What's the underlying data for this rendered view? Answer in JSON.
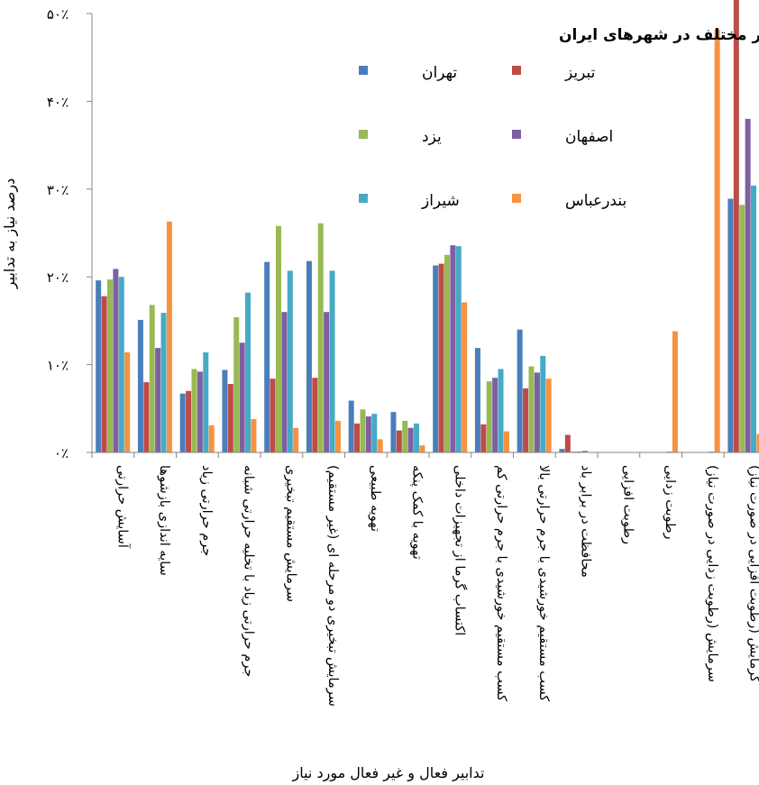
{
  "chart_data": {
    "type": "bar",
    "title": "مقایسه تدابیر مختلف در شهرهای ایران",
    "xlabel": "تدابیر فعال و غیر فعال مورد نیاز",
    "ylabel": "درصد نیاز به تدابیر",
    "ylim": [
      0,
      50
    ],
    "yticks": [
      0,
      10,
      20,
      30,
      40,
      50
    ],
    "ytick_labels": [
      "۰٪",
      "۱۰٪",
      "۲۰٪",
      "۳۰٪",
      "۴۰٪",
      "۵۰٪"
    ],
    "grid": false,
    "legend_position": "top-inside",
    "categories": [
      [
        "آسایش حرارتی"
      ],
      [
        "سایه اندازی بازشوها"
      ],
      [
        "جرم حرارتی زیاد"
      ],
      [
        "جرم حرارتی زیاد با تخلیه حرارتی شبانه"
      ],
      [
        "سرمایش مستقیم تبخیری"
      ],
      [
        "سرمایش تبخیری دو مرحله ای (غیر مستقیم)"
      ],
      [
        "تهویه طبیعی"
      ],
      [
        "تهویه با کمک پنکه"
      ],
      [
        "اکتساب گرما از تجهیزات داخلی"
      ],
      [
        "کسب مستقیم خورشیدی با جرم حرارتی کم"
      ],
      [
        "کسب مستقیم خورشیدی با جرم حرارتی بالا"
      ],
      [
        "محافظت در برابر باد"
      ],
      [
        "رطوبت افزایی"
      ],
      [
        "رطوبت زدایی"
      ],
      [
        "سرمایش (رطوبت زدایی در صورت نیاز)"
      ],
      [
        "گرمایش (رطوبت افزایی در صورت نیاز)"
      ]
    ],
    "series": [
      {
        "name": "تهران",
        "color": "#4a7ebb",
        "values": [
          19.6,
          15.1,
          6.7,
          9.4,
          21.7,
          21.8,
          5.9,
          4.6,
          21.3,
          11.9,
          14.0,
          0.4,
          0,
          0,
          0,
          28.9
        ]
      },
      {
        "name": "تبریز",
        "color": "#be4b48",
        "values": [
          17.8,
          8.0,
          7.0,
          7.8,
          8.4,
          8.5,
          3.3,
          2.5,
          21.5,
          3.2,
          7.3,
          2.0,
          0,
          0,
          0,
          51.8
        ]
      },
      {
        "name": "یزد",
        "color": "#98b954",
        "values": [
          19.7,
          16.8,
          9.5,
          15.4,
          25.8,
          26.1,
          4.9,
          3.6,
          22.5,
          8.1,
          9.8,
          0.1,
          0,
          0,
          0,
          28.2
        ]
      },
      {
        "name": "اصفهان",
        "color": "#7d60a0",
        "values": [
          20.9,
          11.9,
          9.2,
          12.5,
          16.0,
          16.0,
          4.1,
          2.8,
          23.6,
          8.5,
          9.1,
          0.1,
          0,
          0,
          0,
          38.0
        ]
      },
      {
        "name": "شیراز",
        "color": "#46aac5",
        "values": [
          20.0,
          15.9,
          11.4,
          18.2,
          20.7,
          20.7,
          4.4,
          3.3,
          23.5,
          9.5,
          11.0,
          0.2,
          0,
          0.1,
          0.1,
          30.4
        ]
      },
      {
        "name": "بندرعباس",
        "color": "#f69240",
        "values": [
          11.4,
          26.3,
          3.1,
          3.8,
          2.8,
          3.6,
          1.5,
          0.8,
          17.1,
          2.4,
          8.4,
          0,
          0,
          13.8,
          48.2,
          2.1
        ]
      }
    ]
  }
}
